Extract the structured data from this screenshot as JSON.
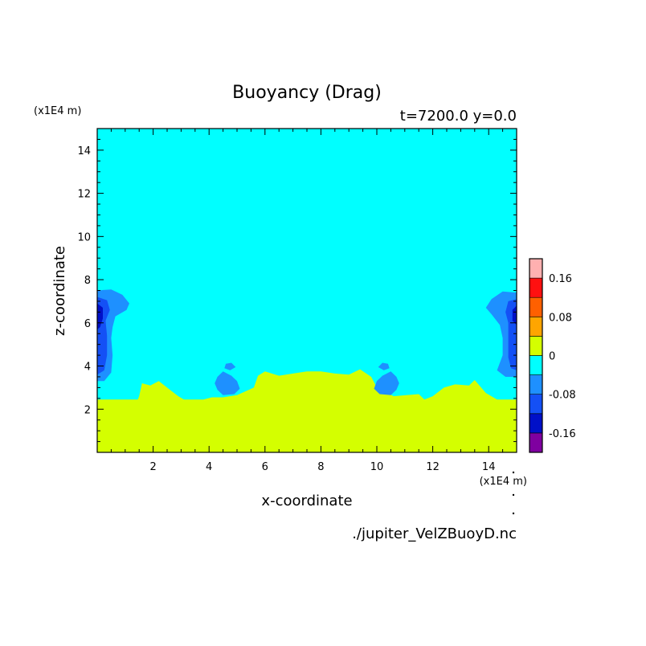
{
  "chart_data": {
    "type": "heatmap",
    "title": "Buoyancy (Drag)",
    "subtitle": "t=7200.0 y=0.0",
    "xlabel": "x-coordinate",
    "ylabel": "z-coordinate",
    "x_unit": "(x1E4 m)",
    "y_unit": "(x1E4 m)",
    "xlim": [
      0,
      15
    ],
    "ylim": [
      0,
      15
    ],
    "x_ticks": [
      2,
      4,
      6,
      8,
      10,
      12,
      14
    ],
    "y_ticks": [
      2,
      4,
      6,
      8,
      10,
      12,
      14
    ],
    "grid": false,
    "legend": "right colorbar",
    "footer": "./jupiter_VelZBuoyD.nc",
    "colorbar": {
      "levels": [
        -0.2,
        -0.16,
        -0.12,
        -0.08,
        -0.04,
        0,
        0.04,
        0.08,
        0.12,
        0.16,
        0.2
      ],
      "colors": [
        "#7f00a0",
        "#0010c8",
        "#1450f5",
        "#1e90ff",
        "#00ffff",
        "#d4ff00",
        "#ffa500",
        "#ff6000",
        "#ff1010",
        "#ffb0b0"
      ],
      "labels": [
        "-0.16",
        "-0.08",
        "0",
        "0.08",
        "0.16"
      ],
      "label_values": [
        -0.16,
        -0.08,
        0,
        0.08,
        0.16
      ]
    },
    "field": {
      "background_value": -0.02,
      "regions": [
        {
          "name": "lower-positive-layer",
          "value": 0.01,
          "outline": [
            [
              0,
              0
            ],
            [
              0,
              2.45
            ],
            [
              1.45,
              2.45
            ],
            [
              1.5,
              2.6
            ],
            [
              1.6,
              3.2
            ],
            [
              1.9,
              3.1
            ],
            [
              2.2,
              3.3
            ],
            [
              2.6,
              2.9
            ],
            [
              2.9,
              2.6
            ],
            [
              3.1,
              2.45
            ],
            [
              3.8,
              2.45
            ],
            [
              4.1,
              2.55
            ],
            [
              4.5,
              2.55
            ],
            [
              5.0,
              2.65
            ],
            [
              5.6,
              3.0
            ],
            [
              5.75,
              3.55
            ],
            [
              6.0,
              3.75
            ],
            [
              6.5,
              3.55
            ],
            [
              7.0,
              3.65
            ],
            [
              7.5,
              3.75
            ],
            [
              8.0,
              3.75
            ],
            [
              8.5,
              3.65
            ],
            [
              9.0,
              3.6
            ],
            [
              9.4,
              3.85
            ],
            [
              9.8,
              3.5
            ],
            [
              10.0,
              3.0
            ],
            [
              10.6,
              2.6
            ],
            [
              11.5,
              2.7
            ],
            [
              11.7,
              2.45
            ],
            [
              12.0,
              2.6
            ],
            [
              12.4,
              3.0
            ],
            [
              12.8,
              3.15
            ],
            [
              13.3,
              3.1
            ],
            [
              13.5,
              3.35
            ],
            [
              13.9,
              2.75
            ],
            [
              14.3,
              2.45
            ],
            [
              15,
              2.45
            ],
            [
              15,
              0
            ]
          ]
        },
        {
          "name": "left-edge-plume-outer",
          "value": -0.06,
          "outline": [
            [
              0,
              7.5
            ],
            [
              0.5,
              7.55
            ],
            [
              0.9,
              7.3
            ],
            [
              1.15,
              6.9
            ],
            [
              1.05,
              6.6
            ],
            [
              0.65,
              6.3
            ],
            [
              0.55,
              5.8
            ],
            [
              0.5,
              5.3
            ],
            [
              0.55,
              4.5
            ],
            [
              0.5,
              3.7
            ],
            [
              0.25,
              3.3
            ],
            [
              0,
              3.3
            ]
          ]
        },
        {
          "name": "left-edge-plume-inner",
          "value": -0.1,
          "outline": [
            [
              0,
              7.2
            ],
            [
              0.35,
              7.05
            ],
            [
              0.45,
              6.6
            ],
            [
              0.3,
              6.1
            ],
            [
              0.35,
              5.4
            ],
            [
              0.35,
              4.5
            ],
            [
              0.25,
              3.8
            ],
            [
              0,
              3.6
            ]
          ]
        },
        {
          "name": "left-edge-plume-core",
          "value": -0.14,
          "outline": [
            [
              0,
              6.9
            ],
            [
              0.2,
              6.7
            ],
            [
              0.2,
              6.2
            ],
            [
              0.1,
              5.8
            ],
            [
              0,
              5.7
            ]
          ]
        },
        {
          "name": "right-edge-plume-outer",
          "value": -0.06,
          "outline": [
            [
              15,
              7.4
            ],
            [
              14.5,
              7.45
            ],
            [
              14.1,
              7.1
            ],
            [
              13.9,
              6.7
            ],
            [
              14.1,
              6.4
            ],
            [
              14.4,
              5.9
            ],
            [
              14.5,
              5.3
            ],
            [
              14.5,
              4.5
            ],
            [
              14.3,
              3.8
            ],
            [
              14.6,
              3.5
            ],
            [
              15,
              3.5
            ]
          ]
        },
        {
          "name": "right-edge-plume-inner",
          "value": -0.1,
          "outline": [
            [
              15,
              7.1
            ],
            [
              14.7,
              7.0
            ],
            [
              14.6,
              6.5
            ],
            [
              14.7,
              6.0
            ],
            [
              14.7,
              5.2
            ],
            [
              14.7,
              4.4
            ],
            [
              14.8,
              3.9
            ],
            [
              15,
              3.8
            ]
          ]
        },
        {
          "name": "right-edge-plume-core",
          "value": -0.14,
          "outline": [
            [
              15,
              6.8
            ],
            [
              14.85,
              6.6
            ],
            [
              14.85,
              6.1
            ],
            [
              15,
              5.9
            ]
          ]
        },
        {
          "name": "left-center-blob-outer",
          "value": -0.06,
          "outline": [
            [
              4.3,
              3.5
            ],
            [
              4.5,
              3.75
            ],
            [
              4.8,
              3.55
            ],
            [
              5.0,
              3.3
            ],
            [
              5.1,
              2.95
            ],
            [
              4.9,
              2.7
            ],
            [
              4.5,
              2.65
            ],
            [
              4.3,
              2.9
            ],
            [
              4.2,
              3.2
            ]
          ]
        },
        {
          "name": "left-center-blob-top",
          "value": -0.06,
          "outline": [
            [
              4.6,
              4.1
            ],
            [
              4.8,
              4.15
            ],
            [
              4.95,
              3.95
            ],
            [
              4.75,
              3.8
            ],
            [
              4.55,
              3.9
            ]
          ]
        },
        {
          "name": "right-center-blob-outer",
          "value": -0.06,
          "outline": [
            [
              10.7,
              3.5
            ],
            [
              10.5,
              3.75
            ],
            [
              10.2,
              3.55
            ],
            [
              10.0,
              3.3
            ],
            [
              9.9,
              2.95
            ],
            [
              10.1,
              2.7
            ],
            [
              10.5,
              2.65
            ],
            [
              10.7,
              2.9
            ],
            [
              10.8,
              3.2
            ]
          ]
        },
        {
          "name": "right-center-blob-top",
          "value": -0.06,
          "outline": [
            [
              10.4,
              4.1
            ],
            [
              10.2,
              4.15
            ],
            [
              10.05,
              3.95
            ],
            [
              10.25,
              3.8
            ],
            [
              10.45,
              3.9
            ]
          ]
        }
      ]
    }
  }
}
